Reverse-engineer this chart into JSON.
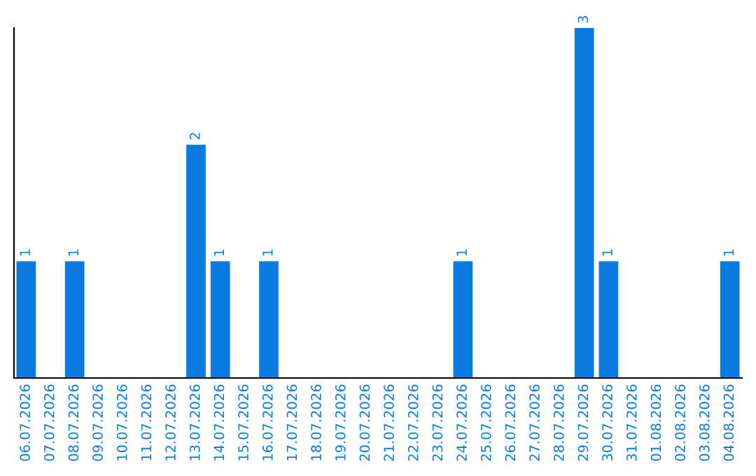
{
  "chart_data": {
    "type": "bar",
    "categories": [
      "06.07.2026",
      "07.07.2026",
      "08.07.2026",
      "09.07.2026",
      "10.07.2026",
      "11.07.2026",
      "12.07.2026",
      "13.07.2026",
      "14.07.2026",
      "15.07.2026",
      "16.07.2026",
      "17.07.2026",
      "18.07.2026",
      "19.07.2026",
      "20.07.2026",
      "21.07.2026",
      "22.07.2026",
      "23.07.2026",
      "24.07.2026",
      "25.07.2026",
      "26.07.2026",
      "27.07.2026",
      "28.07.2026",
      "29.07.2026",
      "30.07.2026",
      "31.07.2026",
      "01.08.2026",
      "02.08.2026",
      "03.08.2026",
      "04.08.2026"
    ],
    "values": [
      1,
      0,
      1,
      0,
      0,
      0,
      0,
      2,
      1,
      0,
      1,
      0,
      0,
      0,
      0,
      0,
      0,
      0,
      1,
      0,
      0,
      0,
      0,
      3,
      1,
      0,
      0,
      0,
      0,
      1
    ],
    "value_labels": [
      "1",
      null,
      "1",
      null,
      null,
      null,
      null,
      "2",
      "1",
      null,
      "1",
      null,
      null,
      null,
      null,
      null,
      null,
      null,
      "1",
      null,
      null,
      null,
      null,
      "3",
      "1",
      null,
      null,
      null,
      null,
      "1"
    ],
    "color": "#0a7ce0",
    "grid": false,
    "legend": false,
    "tick_labels": "x"
  }
}
